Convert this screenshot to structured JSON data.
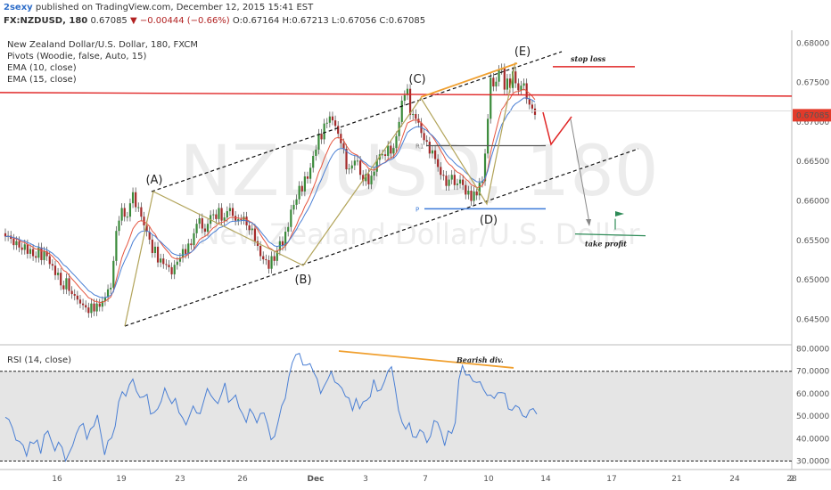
{
  "header": {
    "author": "2sexy",
    "published": " published on TradingView.com, December 12, 2015 15:41 EST",
    "symbol": "FX:NZDUSD, 180",
    "last": "0.67085",
    "change": "▼ −0.00444 (−0.66%)",
    "ohlc": "O:0.67164 H:0.67213 L:0.67056 C:0.67085"
  },
  "legend": {
    "title": "New Zealand Dollar/U.S. Dollar, 180, FXCM",
    "pivots": "Pivots (Woodie, false, Auto, 15)",
    "ema10": "EMA (10, close)",
    "ema15": "EMA (15, close)",
    "rsi": "RSI (14, close)"
  },
  "watermark": {
    "line1": "NZDUSD, 180",
    "line2": "New Zealand Dollar/U.S. Dollar"
  },
  "annotations": {
    "stop_loss": "stop loss",
    "take_profit": "take profit",
    "bearish_div": "Bearish div.",
    "pivot_r1": "R1",
    "pivot_p": "P",
    "wave_a": "(A)",
    "wave_b": "(B)",
    "wave_c": "(C)",
    "wave_d": "(D)",
    "wave_e": "(E)"
  },
  "colors": {
    "candle_up": "#3a8a3a",
    "candle_down": "#a42a2a",
    "ema10": "#e5553f",
    "ema15": "#4a7fd4",
    "rsi": "#4a7fd4",
    "resistance": "#e02626",
    "orange": "#f0a030",
    "wave_line": "#b2a45a",
    "pivot_p": "#3b7ad9",
    "last_price_bg": "#e23a2a"
  },
  "chart_data": {
    "type": "candlestick",
    "price_axis": {
      "ticks": [
        "0.68000",
        "0.67500",
        "0.67000",
        "0.66500",
        "0.66000",
        "0.65500",
        "0.65000",
        "0.64500"
      ],
      "ylim": [
        0.642,
        0.6815
      ],
      "last_price_label": "0.67085"
    },
    "time_axis": {
      "ticks": [
        "16",
        "19",
        "23",
        "26",
        "Dec",
        "3",
        "7",
        "10",
        "14",
        "17",
        "21",
        "24",
        "28",
        "2"
      ]
    },
    "rsi_axis": {
      "ticks": [
        "80.0000",
        "70.0000",
        "60.0000",
        "50.0000",
        "40.0000",
        "30.0000"
      ],
      "ylim": [
        27,
        81
      ]
    },
    "levels": {
      "resistance": 0.6735,
      "stop_loss": 0.677,
      "pivot_r1": 0.667,
      "pivot_p": 0.659,
      "take_profit": 0.6557
    },
    "waves": [
      {
        "label": "(A)",
        "price": 0.6612
      },
      {
        "label": "(B)",
        "price": 0.651
      },
      {
        "label": "(C)",
        "price": 0.675
      },
      {
        "label": "(D)",
        "price": 0.6594
      },
      {
        "label": "(E)",
        "price": 0.6784
      }
    ],
    "close": [
      0.6555,
      0.6556,
      0.6552,
      0.6544,
      0.6549,
      0.6541,
      0.6538,
      0.6545,
      0.6533,
      0.6539,
      0.653,
      0.6528,
      0.6541,
      0.6525,
      0.6536,
      0.653,
      0.652,
      0.6518,
      0.6506,
      0.6509,
      0.6493,
      0.6488,
      0.6502,
      0.6486,
      0.6482,
      0.648,
      0.6475,
      0.647,
      0.6468,
      0.6465,
      0.6458,
      0.647,
      0.646,
      0.647,
      0.6466,
      0.6473,
      0.6478,
      0.6488,
      0.649,
      0.6524,
      0.6562,
      0.6575,
      0.6591,
      0.658,
      0.658,
      0.6597,
      0.6611,
      0.6592,
      0.6592,
      0.658,
      0.6569,
      0.6561,
      0.6551,
      0.6534,
      0.6542,
      0.6522,
      0.6527,
      0.652,
      0.6519,
      0.6516,
      0.6507,
      0.6519,
      0.6523,
      0.6528,
      0.6539,
      0.6533,
      0.6546,
      0.6544,
      0.6559,
      0.6571,
      0.6578,
      0.6565,
      0.6561,
      0.6571,
      0.6582,
      0.6583,
      0.6577,
      0.6591,
      0.6575,
      0.6579,
      0.6587,
      0.6591,
      0.6581,
      0.6575,
      0.6577,
      0.6576,
      0.658,
      0.6569,
      0.6563,
      0.6565,
      0.6549,
      0.6543,
      0.653,
      0.6526,
      0.6525,
      0.6514,
      0.653,
      0.6524,
      0.6537,
      0.6549,
      0.6543,
      0.6561,
      0.6567,
      0.6589,
      0.6595,
      0.6602,
      0.6619,
      0.6612,
      0.6631,
      0.6628,
      0.6642,
      0.6657,
      0.6665,
      0.6685,
      0.6678,
      0.6698,
      0.6699,
      0.6707,
      0.6702,
      0.6695,
      0.6685,
      0.6673,
      0.6666,
      0.664,
      0.6641,
      0.6645,
      0.6651,
      0.6651,
      0.6633,
      0.6625,
      0.6634,
      0.6621,
      0.6632,
      0.6637,
      0.6652,
      0.6659,
      0.6659,
      0.6657,
      0.667,
      0.666,
      0.6667,
      0.6682,
      0.67,
      0.6727,
      0.6734,
      0.6742,
      0.6709,
      0.671,
      0.6704,
      0.6699,
      0.6686,
      0.6677,
      0.6675,
      0.666,
      0.6664,
      0.6653,
      0.6643,
      0.6633,
      0.6632,
      0.6619,
      0.6627,
      0.6633,
      0.662,
      0.6622,
      0.6627,
      0.662,
      0.6608,
      0.6613,
      0.66,
      0.6612,
      0.6607,
      0.6623,
      0.6625,
      0.666,
      0.6704,
      0.6756,
      0.6745,
      0.6751,
      0.6766,
      0.6768,
      0.6741,
      0.6755,
      0.6743,
      0.6764,
      0.6749,
      0.674,
      0.6746,
      0.6749,
      0.6729,
      0.6722,
      0.6717,
      0.6709
    ],
    "rsi": [
      49.5,
      48.5,
      44.8,
      39.3,
      38.7,
      37.0,
      32.2,
      38.5,
      37.8,
      39.3,
      33.3,
      41.7,
      43.4,
      38.8,
      34.5,
      38.4,
      36.1,
      30.0,
      33.5,
      36.9,
      42.1,
      45.5,
      46.7,
      39.7,
      44.2,
      45.6,
      50.5,
      41.8,
      32.7,
      39.0,
      40.3,
      45.5,
      56.4,
      60.9,
      58.9,
      64.0,
      66.5,
      61.1,
      58.3,
      58.6,
      59.7,
      50.9,
      51.6,
      53.3,
      56.6,
      62.5,
      58.5,
      55.6,
      57.9,
      51.6,
      49.3,
      46.1,
      50.2,
      54.5,
      51.4,
      51.1,
      56.7,
      62.3,
      59.3,
      57.2,
      55.6,
      59.8,
      64.8,
      56.2,
      57.6,
      59.4,
      53.7,
      50.9,
      47.2,
      53.2,
      50.9,
      47.0,
      51.2,
      51.4,
      46.4,
      39.5,
      41.0,
      47.4,
      54.5,
      57.9,
      67.4,
      73.8,
      77.4,
      78.0,
      72.8,
      72.8,
      73.4,
      69.6,
      66.6,
      60.1,
      63.4,
      66.4,
      69.9,
      65.2,
      64.2,
      62.4,
      58.8,
      58.0,
      52.5,
      57.8,
      53.3,
      56.4,
      57.1,
      58.6,
      66.3,
      61.1,
      61.7,
      65.3,
      70.1,
      72.0,
      62.8,
      52.6,
      47.2,
      44.2,
      47.0,
      40.8,
      40.5,
      43.9,
      42.7,
      38.2,
      41.0,
      48.0,
      47.2,
      42.9,
      36.8,
      43.4,
      42.3,
      47.1,
      66.2,
      72.6,
      68.3,
      68.4,
      65.6,
      65.0,
      65.3,
      61.8,
      59.2,
      59.4,
      57.9,
      60.4,
      60.5,
      60.2,
      53.2,
      52.6,
      54.7,
      53.8,
      50.2,
      49.4,
      52.7,
      53.4,
      50.9
    ]
  }
}
